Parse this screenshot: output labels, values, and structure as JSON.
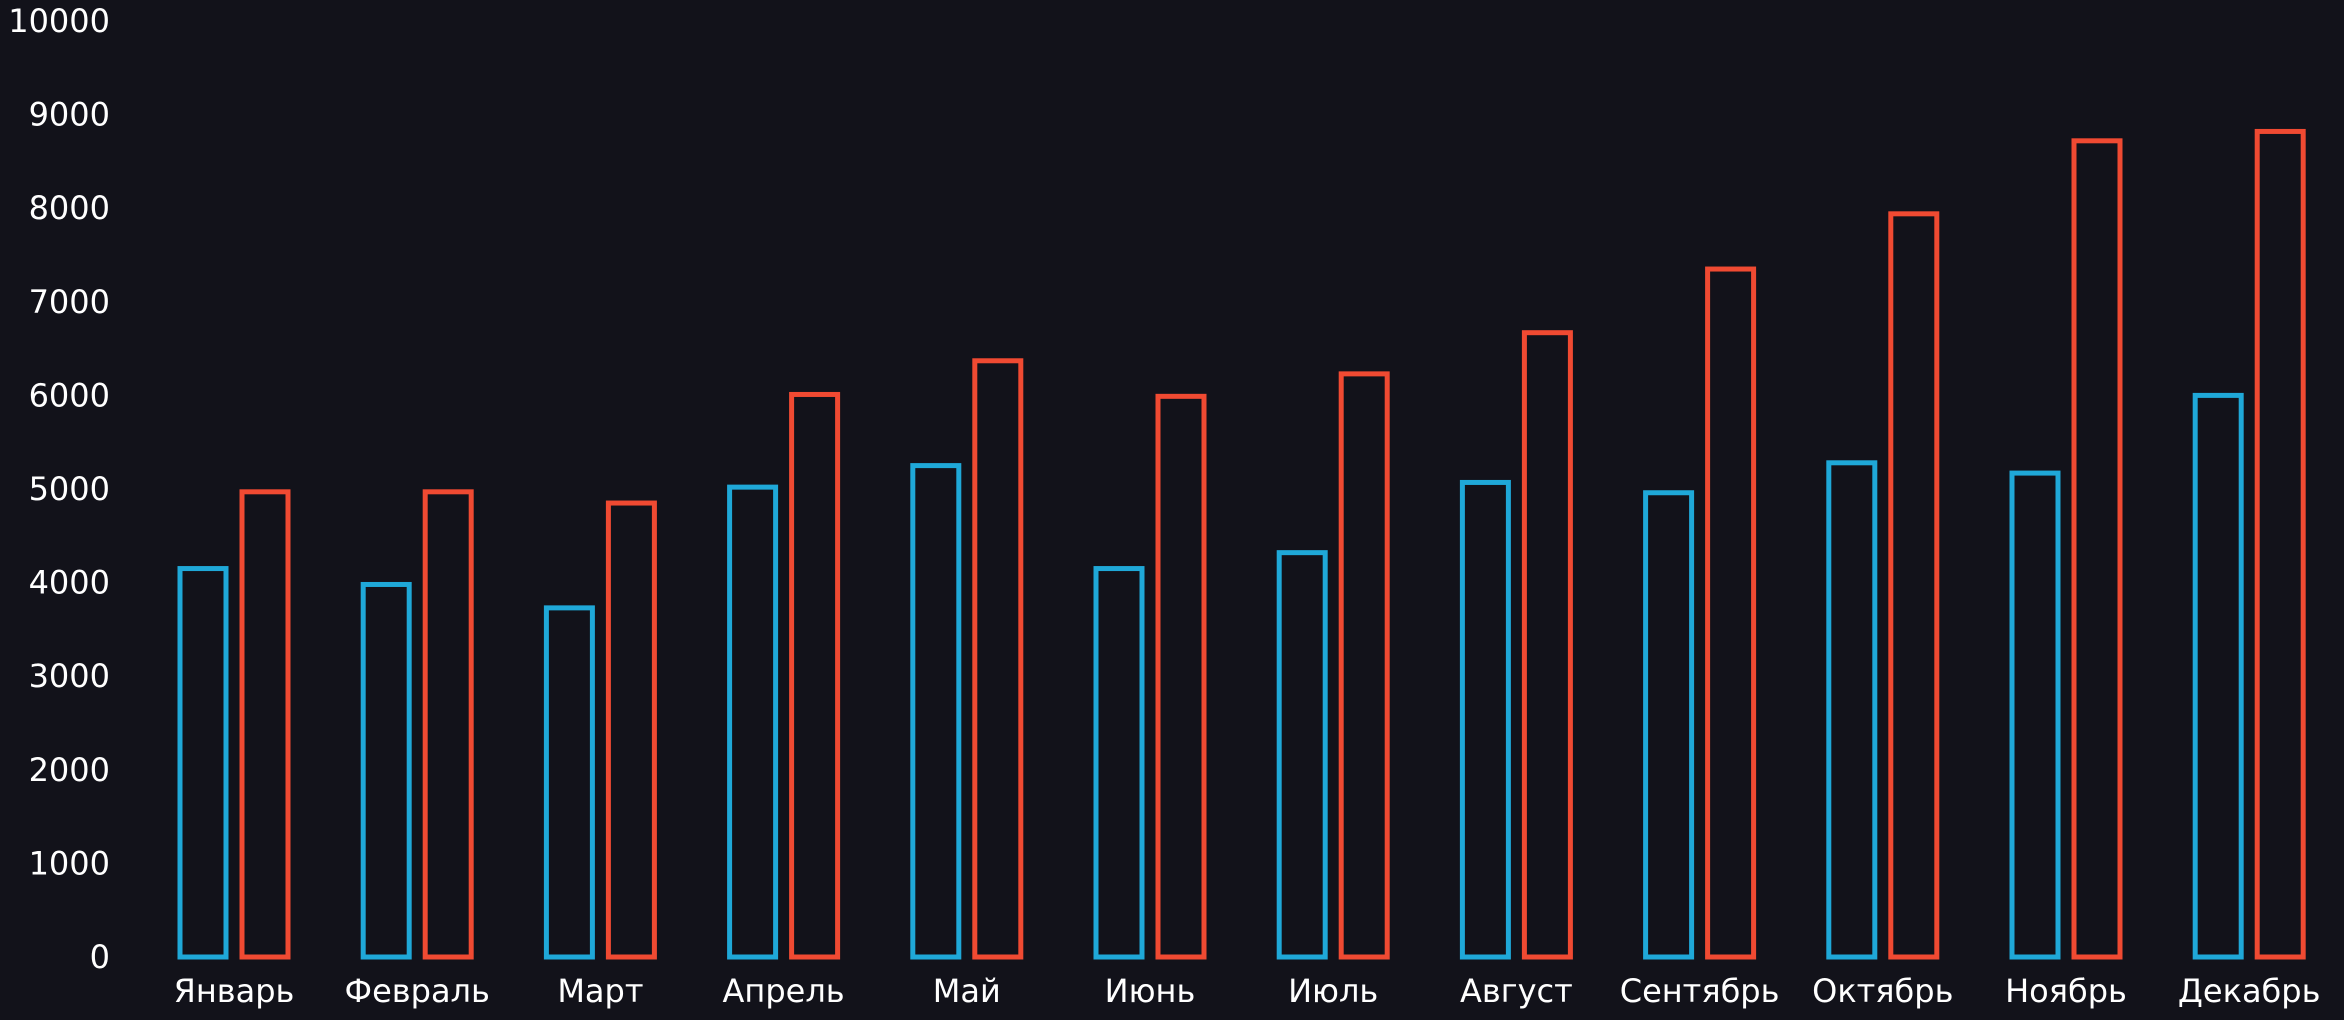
{
  "colors": {
    "background": "#12121a",
    "series_a": "#1fa8d8",
    "series_b": "#f04a32",
    "text": "#ffffff"
  },
  "chart_data": {
    "type": "bar",
    "style": "outlined grouped bars",
    "grid": false,
    "legend": "none",
    "title": "",
    "xlabel": "",
    "ylabel": "",
    "ylim": [
      0,
      10000
    ],
    "yticks": [
      0,
      1000,
      2000,
      3000,
      4000,
      5000,
      6000,
      7000,
      8000,
      9000,
      10000
    ],
    "categories": [
      "Январь",
      "Февраль",
      "Март",
      "Апрель",
      "Май",
      "Июнь",
      "Июль",
      "Август",
      "Сентябрь",
      "Октябрь",
      "Ноябрь",
      "Декабрь"
    ],
    "series": [
      {
        "color": "#1fa8d8",
        "values": [
          4150,
          3980,
          3730,
          5020,
          5250,
          4150,
          4320,
          5070,
          4960,
          5280,
          5170,
          6000
        ]
      },
      {
        "color": "#f04a32",
        "values": [
          4970,
          4970,
          4850,
          6010,
          6370,
          5990,
          6230,
          6670,
          7350,
          7940,
          8720,
          8820
        ]
      }
    ]
  }
}
